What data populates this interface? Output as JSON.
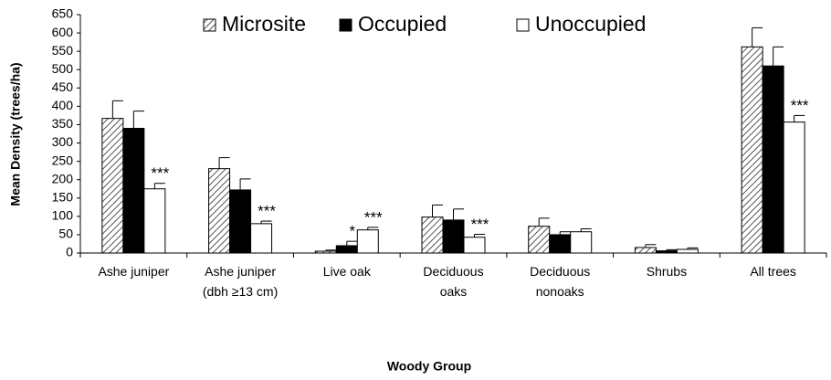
{
  "chart_data": {
    "type": "bar",
    "x_label": "Woody Group",
    "y_label": "Mean Density (trees/ha)",
    "categories": [
      "Ashe juniper",
      "Ashe juniper\n(dbh ≥13 cm)",
      "Live oak",
      "Deciduous\noaks",
      "Deciduous\nnonoaks",
      "Shrubs",
      "All trees"
    ],
    "series": [
      {
        "name": "Microsite",
        "color": "#000000",
        "pattern": "hatch",
        "values": [
          367,
          230,
          5,
          98,
          73,
          15,
          562
        ],
        "errors": [
          48,
          30,
          3,
          33,
          22,
          8,
          52
        ],
        "annotations": [
          null,
          null,
          null,
          null,
          null,
          null,
          null
        ]
      },
      {
        "name": "Occupied",
        "color": "#000000",
        "pattern": "solid",
        "values": [
          340,
          172,
          20,
          90,
          50,
          6,
          510
        ],
        "errors": [
          47,
          30,
          12,
          30,
          8,
          3,
          52
        ],
        "annotations": [
          null,
          null,
          "*",
          null,
          null,
          null,
          null
        ]
      },
      {
        "name": "Unoccupied",
        "color": "#ffffff",
        "pattern": "solid",
        "values": [
          175,
          80,
          63,
          43,
          58,
          10,
          357
        ],
        "errors": [
          15,
          7,
          7,
          8,
          8,
          4,
          18
        ],
        "annotations": [
          "***",
          "***",
          "***",
          "***",
          null,
          null,
          "***"
        ]
      }
    ],
    "ylim": [
      0,
      650
    ],
    "yticks": [
      0,
      50,
      100,
      150,
      200,
      250,
      300,
      350,
      400,
      450,
      500,
      550,
      600,
      650
    ],
    "grid": false,
    "legend": "top"
  }
}
